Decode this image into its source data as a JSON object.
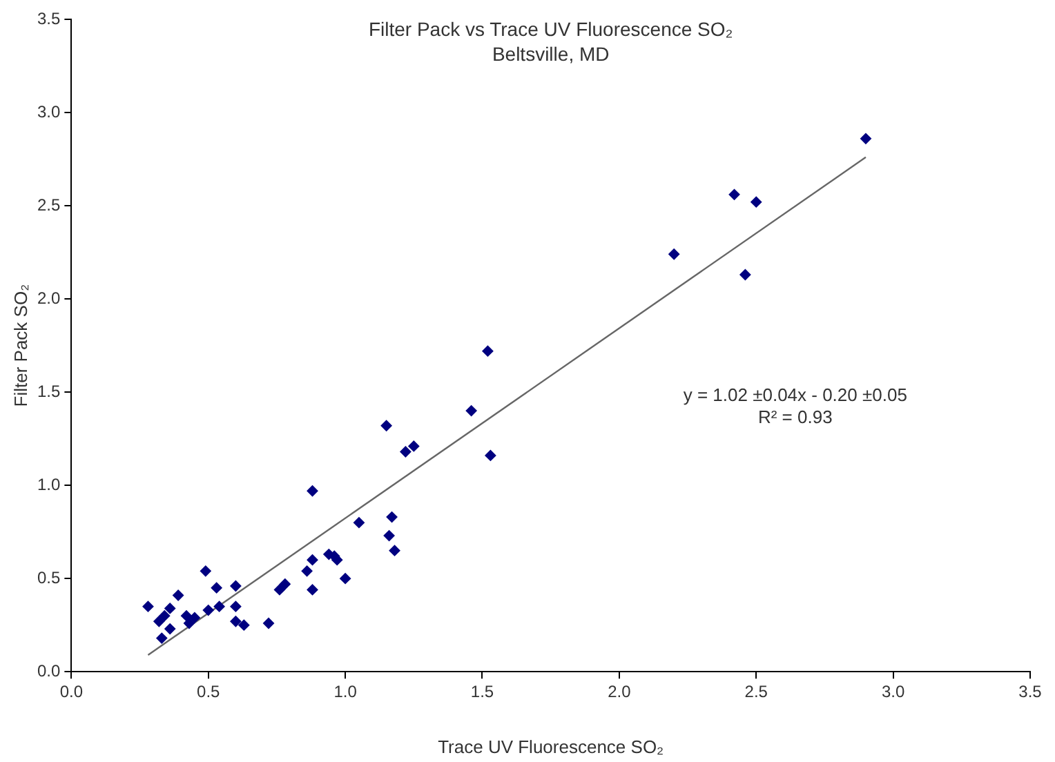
{
  "chart_data": {
    "type": "scatter",
    "title": "Filter Pack vs Trace UV Fluorescence SO₂",
    "subtitle": "Beltsville, MD",
    "xlabel": "Trace UV Fluorescence SO₂",
    "ylabel": "Filter Pack SO₂",
    "annotations": [
      "y = 1.02 ±0.04x - 0.20 ±0.05",
      "R² = 0.93"
    ],
    "xlim": [
      0,
      3.5
    ],
    "ylim": [
      0,
      3.5
    ],
    "xticks": [
      {
        "value": 0,
        "label": "0.0"
      },
      {
        "value": 0.5,
        "label": "0.5"
      },
      {
        "value": 1,
        "label": "1.0"
      },
      {
        "value": 1.5,
        "label": "1.5"
      },
      {
        "value": 2,
        "label": "2.0"
      },
      {
        "value": 2.5,
        "label": "2.5"
      },
      {
        "value": 3,
        "label": "3.0"
      },
      {
        "value": 3.5,
        "label": "3.5"
      }
    ],
    "yticks": [
      {
        "value": 0,
        "label": "0.0"
      },
      {
        "value": 0.5,
        "label": "0.5"
      },
      {
        "value": 1,
        "label": "1.0"
      },
      {
        "value": 1.5,
        "label": "1.5"
      },
      {
        "value": 2,
        "label": "2.0"
      },
      {
        "value": 2.5,
        "label": "2.5"
      },
      {
        "value": 3,
        "label": "3.0"
      },
      {
        "value": 3.5,
        "label": "3.5"
      }
    ],
    "grid": false,
    "legend": false,
    "marker": "diamond",
    "series": [
      {
        "type": "scatter",
        "color": "#000080",
        "x": [
          0.28,
          0.32,
          0.33,
          0.34,
          0.36,
          0.36,
          0.39,
          0.42,
          0.43,
          0.45,
          0.49,
          0.5,
          0.53,
          0.54,
          0.6,
          0.6,
          0.6,
          0.63,
          0.72,
          0.76,
          0.78,
          0.86,
          0.88,
          0.88,
          0.88,
          0.94,
          0.96,
          0.97,
          1.0,
          1.05,
          1.16,
          1.17,
          1.18,
          1.15,
          1.22,
          1.25,
          1.46,
          1.52,
          1.53,
          2.2,
          2.42,
          2.46,
          2.5,
          2.9
        ],
        "values": [
          0.35,
          0.27,
          0.18,
          0.3,
          0.34,
          0.23,
          0.41,
          0.3,
          0.26,
          0.29,
          0.54,
          0.33,
          0.45,
          0.35,
          0.46,
          0.35,
          0.27,
          0.25,
          0.26,
          0.44,
          0.47,
          0.54,
          0.6,
          0.44,
          0.97,
          0.63,
          0.62,
          0.6,
          0.5,
          0.8,
          0.73,
          0.83,
          0.65,
          1.32,
          1.18,
          1.21,
          1.4,
          1.72,
          1.16,
          2.24,
          2.56,
          2.13,
          2.52,
          2.86
        ]
      },
      {
        "type": "line",
        "color": "#666666",
        "marker": "none",
        "x": [
          0.28,
          2.9
        ],
        "values": [
          0.09,
          2.76
        ]
      }
    ]
  }
}
